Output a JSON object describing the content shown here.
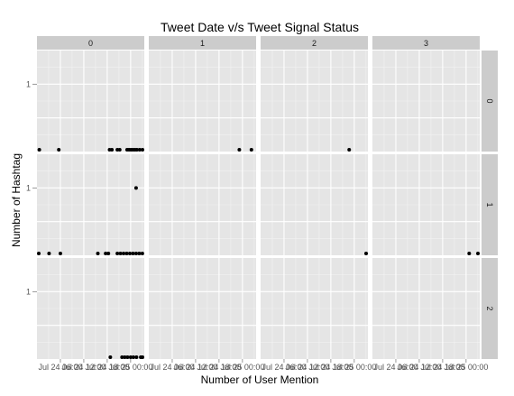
{
  "chart_data": {
    "type": "scatter",
    "title": "Tweet Date v/s Tweet Signal Status",
    "xlabel": "Number of User Mention",
    "ylabel": "Number of Hashtag",
    "facet_cols": [
      "0",
      "1",
      "2",
      "3"
    ],
    "facet_rows": [
      "0",
      "1",
      "2"
    ],
    "y_ticks": [
      "1"
    ],
    "x_tick_labels": [
      "Jul 24 06:00",
      "Jul 24 12:00",
      "Jul 24 18:00",
      "Jul 25 00:00"
    ],
    "x_ticks_printed": [
      "Jul 24 06:00",
      "Jul 24 12:00",
      "Jul 24 18:00",
      "Jul 25 00:00",
      "Jul 24 06:00",
      "Jul 24 12:00",
      "Jul 24 18:00",
      "Jul 25 00:00",
      "Jul 24 06:00",
      "Jul 24 12:00",
      "Jul 24 18:00",
      "Jul 25 00:00",
      "Jul 24 06:00",
      "Jul 24 12:00",
      "Jul 24 18:00",
      "Jul 25 00:00"
    ],
    "xlim_hours": [
      0,
      27.5
    ],
    "ylim": [
      0,
      1.5
    ],
    "grid": true,
    "panels": [
      {
        "col": "0",
        "row": "0",
        "points": [
          {
            "x": 0.6,
            "y": 0
          },
          {
            "x": 5.6,
            "y": 0
          },
          {
            "x": 18.6,
            "y": 0
          },
          {
            "x": 19.2,
            "y": 0
          },
          {
            "x": 20.6,
            "y": 0
          },
          {
            "x": 21.2,
            "y": 0
          },
          {
            "x": 23.1,
            "y": 0
          },
          {
            "x": 23.6,
            "y": 0
          },
          {
            "x": 24.1,
            "y": 0
          },
          {
            "x": 24.6,
            "y": 0
          },
          {
            "x": 25.1,
            "y": 0
          },
          {
            "x": 25.6,
            "y": 0
          },
          {
            "x": 26.3,
            "y": 0
          },
          {
            "x": 27.1,
            "y": 0
          }
        ]
      },
      {
        "col": "1",
        "row": "0",
        "points": [
          {
            "x": 23.2,
            "y": 0
          },
          {
            "x": 26.3,
            "y": 0
          }
        ]
      },
      {
        "col": "2",
        "row": "0",
        "points": [
          {
            "x": 22.7,
            "y": 0
          }
        ]
      },
      {
        "col": "3",
        "row": "0",
        "points": []
      },
      {
        "col": "0",
        "row": "1",
        "points": [
          {
            "x": 0.4,
            "y": 0
          },
          {
            "x": 3.1,
            "y": 0
          },
          {
            "x": 6.0,
            "y": 0
          },
          {
            "x": 15.6,
            "y": 0
          },
          {
            "x": 17.6,
            "y": 0
          },
          {
            "x": 18.3,
            "y": 0
          },
          {
            "x": 20.6,
            "y": 0
          },
          {
            "x": 21.4,
            "y": 0
          },
          {
            "x": 22.2,
            "y": 0
          },
          {
            "x": 23.0,
            "y": 0
          },
          {
            "x": 23.8,
            "y": 0
          },
          {
            "x": 24.6,
            "y": 0
          },
          {
            "x": 25.4,
            "y": 0
          },
          {
            "x": 26.2,
            "y": 0
          },
          {
            "x": 27.0,
            "y": 0
          },
          {
            "x": 25.4,
            "y": 1
          }
        ]
      },
      {
        "col": "1",
        "row": "1",
        "points": []
      },
      {
        "col": "2",
        "row": "1",
        "points": [
          {
            "x": 27.3,
            "y": 0
          }
        ]
      },
      {
        "col": "3",
        "row": "1",
        "points": [
          {
            "x": 24.8,
            "y": 0
          },
          {
            "x": 27.5,
            "y": 0
          }
        ]
      },
      {
        "col": "0",
        "row": "2",
        "points": [
          {
            "x": 18.8,
            "y": 0
          },
          {
            "x": 21.8,
            "y": 0
          },
          {
            "x": 22.5,
            "y": 0
          },
          {
            "x": 23.2,
            "y": 0
          },
          {
            "x": 24.0,
            "y": 0
          },
          {
            "x": 24.7,
            "y": 0
          },
          {
            "x": 25.5,
            "y": 0
          },
          {
            "x": 26.6,
            "y": 0
          },
          {
            "x": 27.2,
            "y": 0
          }
        ]
      },
      {
        "col": "1",
        "row": "2",
        "points": []
      },
      {
        "col": "2",
        "row": "2",
        "points": []
      },
      {
        "col": "3",
        "row": "2",
        "points": []
      }
    ]
  }
}
